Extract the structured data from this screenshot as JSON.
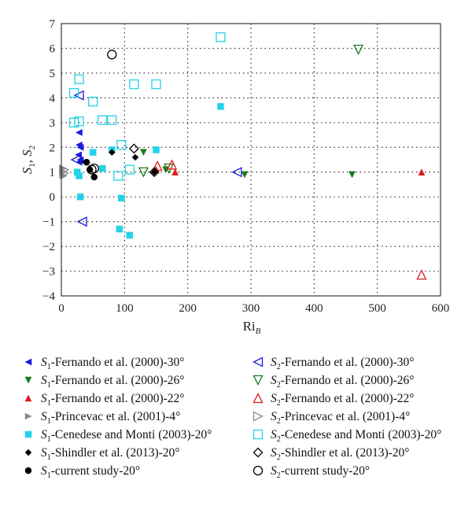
{
  "chart_data": {
    "type": "scatter",
    "title": "",
    "xlabel": "Ri_B",
    "ylabel": "S_1, S_2",
    "xlim": [
      0,
      600
    ],
    "ylim": [
      -4,
      7
    ],
    "xticks": [
      0,
      100,
      200,
      300,
      400,
      500,
      600
    ],
    "yticks": [
      -4,
      -3,
      -2,
      -1,
      0,
      1,
      2,
      3,
      4,
      5,
      6,
      7
    ],
    "grid": "dotted",
    "legend": "below",
    "series": [
      {
        "name": "S1-Fernando et al. (2000)-30°",
        "label_main": "S",
        "label_sub": "1",
        "label_rest": "-Fernando et al. (2000)-30°",
        "marker": "triangle-left",
        "filled": true,
        "color": "#1a1adc",
        "points": [
          [
            28,
            2.6
          ],
          [
            28,
            2.1
          ],
          [
            30,
            2.0
          ],
          [
            27,
            1.7
          ],
          [
            30,
            1.5
          ],
          [
            28,
            1.4
          ]
        ]
      },
      {
        "name": "S2-Fernando et al. (2000)-30°",
        "label_main": "S",
        "label_sub": "2",
        "label_rest": "-Fernando et al. (2000)-30°",
        "marker": "triangle-left",
        "filled": false,
        "color": "#1a1adc",
        "points": [
          [
            28,
            4.1
          ],
          [
            23,
            1.5
          ],
          [
            278,
            1.0
          ],
          [
            33,
            -1.0
          ]
        ]
      },
      {
        "name": "S1-Fernando et al. (2000)-26°",
        "label_main": "S",
        "label_sub": "1",
        "label_rest": "-Fernando et al. (2000)-26°",
        "marker": "triangle-down",
        "filled": true,
        "color": "#1c7a1c",
        "points": [
          [
            130,
            1.8
          ],
          [
            165,
            1.1
          ],
          [
            290,
            0.9
          ],
          [
            460,
            0.9
          ]
        ]
      },
      {
        "name": "S2-Fernando et al. (2000)-26°",
        "label_main": "S",
        "label_sub": "2",
        "label_rest": "-Fernando et al. (2000)-26°",
        "marker": "triangle-down",
        "filled": false,
        "color": "#1c7a1c",
        "points": [
          [
            470,
            5.95
          ],
          [
            130,
            1.0
          ],
          [
            170,
            1.15
          ]
        ]
      },
      {
        "name": "S1-Fernando et al. (2000)-22°",
        "label_main": "S",
        "label_sub": "1",
        "label_rest": "-Fernando et al. (2000)-22°",
        "marker": "triangle-up",
        "filled": true,
        "color": "#dd1c1c",
        "points": [
          [
            150,
            1.1
          ],
          [
            180,
            1.0
          ],
          [
            570,
            1.0
          ]
        ]
      },
      {
        "name": "S2-Fernando et al. (2000)-22°",
        "label_main": "S",
        "label_sub": "2",
        "label_rest": "-Fernando et al. (2000)-22°",
        "marker": "triangle-up",
        "filled": false,
        "color": "#dd1c1c",
        "points": [
          [
            152,
            1.25
          ],
          [
            175,
            1.3
          ],
          [
            570,
            -3.15
          ]
        ]
      },
      {
        "name": "S1-Princevac et al. (2001)-4°",
        "label_main": "S",
        "label_sub": "1",
        "label_rest": "-Princevac et al. (2001)-4°",
        "marker": "triangle-right",
        "filled": true,
        "color": "#8a8a8a",
        "points": [
          [
            3,
            1.15
          ],
          [
            3,
            1.0
          ],
          [
            4,
            0.85
          ]
        ]
      },
      {
        "name": "S2-Princevac et al. (2001)-4°",
        "label_main": "S",
        "label_sub": "2",
        "label_rest": "-Princevac et al. (2001)-4°",
        "marker": "triangle-right",
        "filled": false,
        "color": "#8a8a8a",
        "points": [
          [
            4,
            1.1
          ],
          [
            4,
            0.95
          ]
        ]
      },
      {
        "name": "S1-Cenedese and Monti (2003)-20°",
        "label_main": "S",
        "label_sub": "1",
        "label_rest": "-Cenedese and Monti (2003)-20°",
        "marker": "square",
        "filled": true,
        "color": "#22d3e8",
        "points": [
          [
            25,
            1.0
          ],
          [
            28,
            0.85
          ],
          [
            30,
            0.0
          ],
          [
            50,
            1.8
          ],
          [
            65,
            1.15
          ],
          [
            80,
            1.9
          ],
          [
            95,
            -0.05
          ],
          [
            92,
            -1.3
          ],
          [
            108,
            -1.55
          ],
          [
            150,
            1.9
          ],
          [
            252,
            3.65
          ]
        ]
      },
      {
        "name": "S2-Cenedese and Monti (2003)-20°",
        "label_main": "S",
        "label_sub": "2",
        "label_rest": "-Cenedese and Monti (2003)-20°",
        "marker": "square",
        "filled": false,
        "color": "#22d3e8",
        "points": [
          [
            28,
            4.75
          ],
          [
            20,
            4.2
          ],
          [
            50,
            3.85
          ],
          [
            20,
            3.0
          ],
          [
            28,
            3.05
          ],
          [
            65,
            3.1
          ],
          [
            80,
            3.1
          ],
          [
            95,
            2.1
          ],
          [
            90,
            0.85
          ],
          [
            108,
            1.1
          ],
          [
            115,
            4.55
          ],
          [
            150,
            4.55
          ],
          [
            252,
            6.45
          ]
        ]
      },
      {
        "name": "S1-Shindler et al. (2013)-20°",
        "label_main": "S",
        "label_sub": "1",
        "label_rest": "-Shindler et al. (2013)-20°",
        "marker": "diamond",
        "filled": true,
        "color": "#000000",
        "points": [
          [
            38,
            1.4
          ],
          [
            80,
            1.8
          ],
          [
            117,
            1.6
          ],
          [
            147,
            1.0
          ]
        ]
      },
      {
        "name": "S2-Shindler et al. (2013)-20°",
        "label_main": "S",
        "label_sub": "2",
        "label_rest": "-Shindler et al. (2013)-20°",
        "marker": "diamond",
        "filled": false,
        "color": "#000000",
        "points": [
          [
            115,
            1.95
          ],
          [
            147,
            1.0
          ]
        ]
      },
      {
        "name": "S1-current study-20°",
        "label_main": "S",
        "label_sub": "1",
        "label_rest": "-current study-20°",
        "marker": "circle",
        "filled": true,
        "color": "#000000",
        "points": [
          [
            40,
            1.4
          ],
          [
            45,
            1.1
          ],
          [
            52,
            0.8
          ]
        ]
      },
      {
        "name": "S2-current study-20°",
        "label_main": "S",
        "label_sub": "2",
        "label_rest": "-current study-20°",
        "marker": "circle",
        "filled": false,
        "color": "#000000",
        "points": [
          [
            80,
            5.75
          ],
          [
            48,
            1.1
          ],
          [
            52,
            1.15
          ]
        ]
      }
    ]
  }
}
